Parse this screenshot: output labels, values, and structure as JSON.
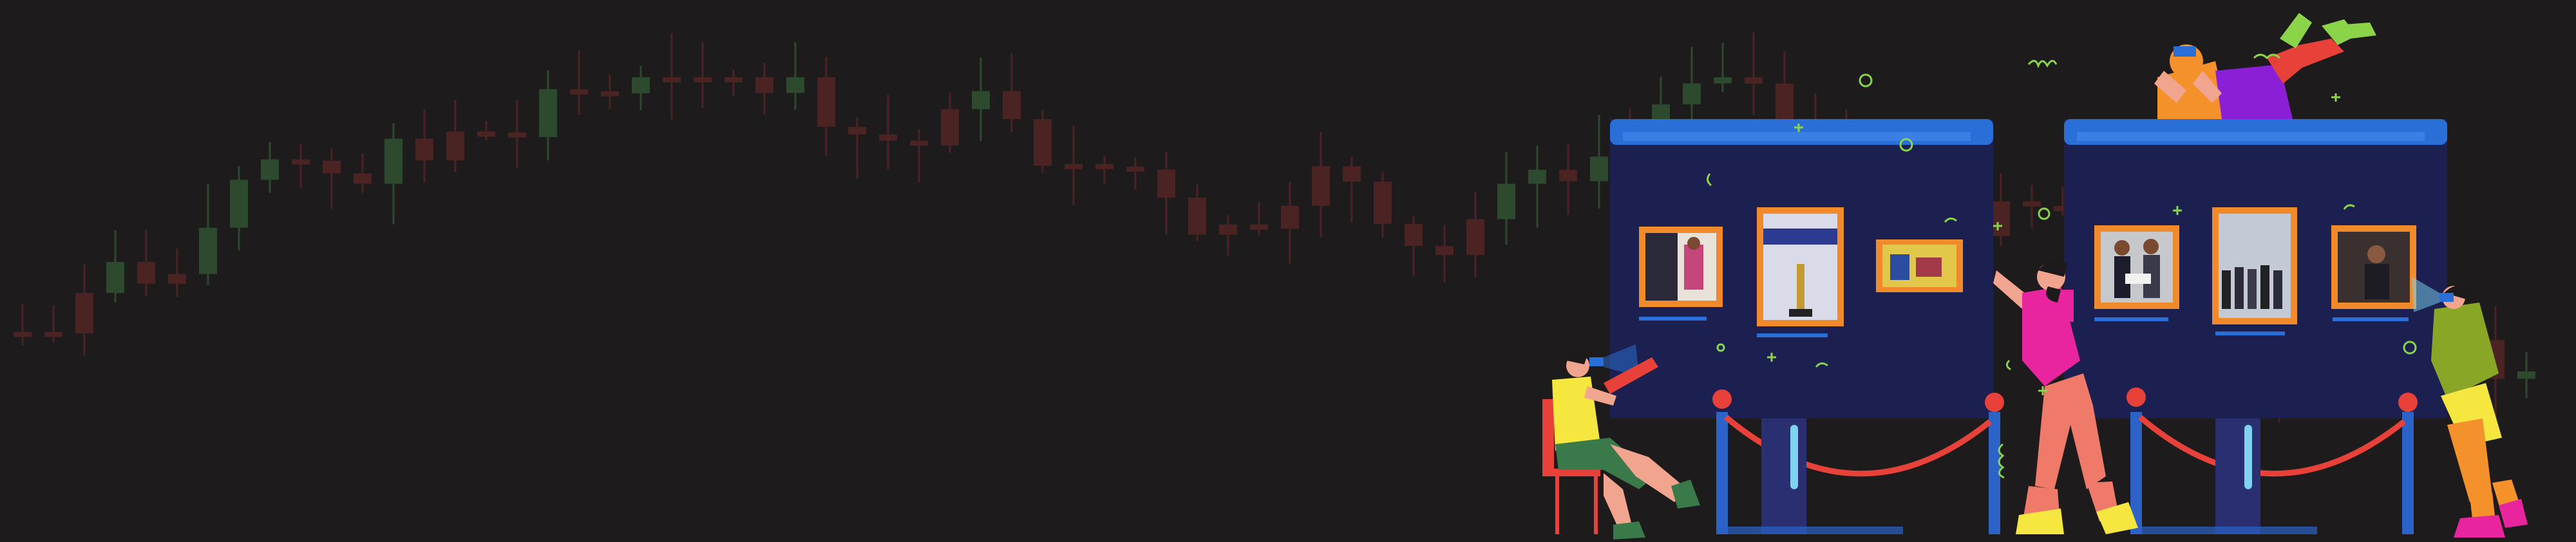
{
  "banner": {
    "background_color": "#1e1b1d",
    "candlestick_up_color": "#2d4a2e",
    "candlestick_down_color": "#4a2322",
    "board_color": "#1c2050",
    "board_header_color": "#2a6fd8",
    "frame_color": "#f08a2a",
    "rope_color": "#e8413a",
    "post_color": "#2b63c9",
    "accent_green": "#8bd44a",
    "left_board": {
      "photos": [
        "award-ceremony-photo",
        "trophy-display-photo",
        "group-event-photo"
      ]
    },
    "right_board": {
      "photos": [
        "handshake-award-photo",
        "team-group-photo",
        "speaker-photo"
      ]
    },
    "figures": [
      "seated-viewer-with-tablet",
      "standing-visitor-pink",
      "visitor-with-binoculars",
      "person-lying-on-board"
    ]
  }
}
